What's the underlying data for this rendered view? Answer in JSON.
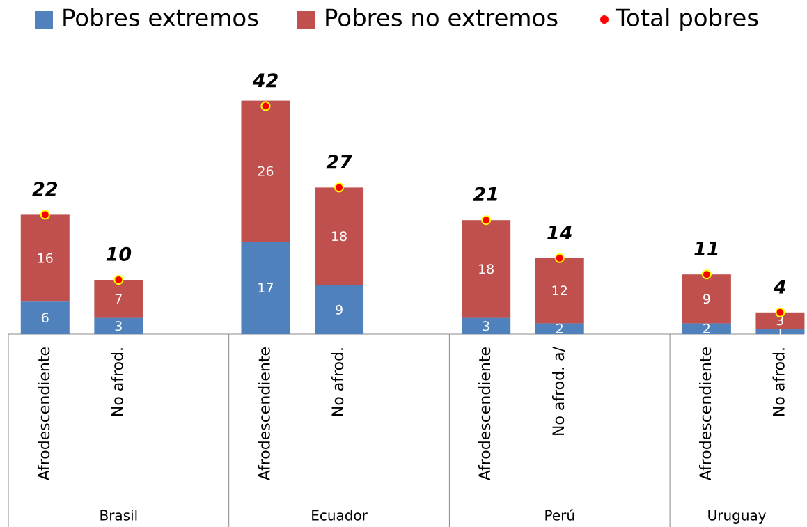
{
  "chart_data": {
    "type": "bar",
    "stacked": true,
    "groups": [
      "Brasil",
      "Ecuador",
      "Perú",
      "Uruguay"
    ],
    "categories": [
      "Afrodescendiente",
      "No afrod.",
      "Afrodescendiente",
      "No afrod.",
      "Afrodescendiente",
      "No afrod.  a/",
      "Afrodescendiente",
      "No afrod."
    ],
    "series": [
      {
        "name": "Pobres extremos",
        "color": "#4f81bd",
        "values": [
          6,
          3,
          17,
          9,
          3,
          2,
          2,
          1
        ]
      },
      {
        "name": "Pobres no extremos",
        "color": "#c0504d",
        "values": [
          16,
          7,
          26,
          18,
          18,
          12,
          9,
          3
        ]
      },
      {
        "name": "Total pobres",
        "color": "#ff0000",
        "marker": "dot",
        "values": [
          22,
          10,
          42,
          27,
          21,
          14,
          11,
          4
        ]
      }
    ]
  }
}
